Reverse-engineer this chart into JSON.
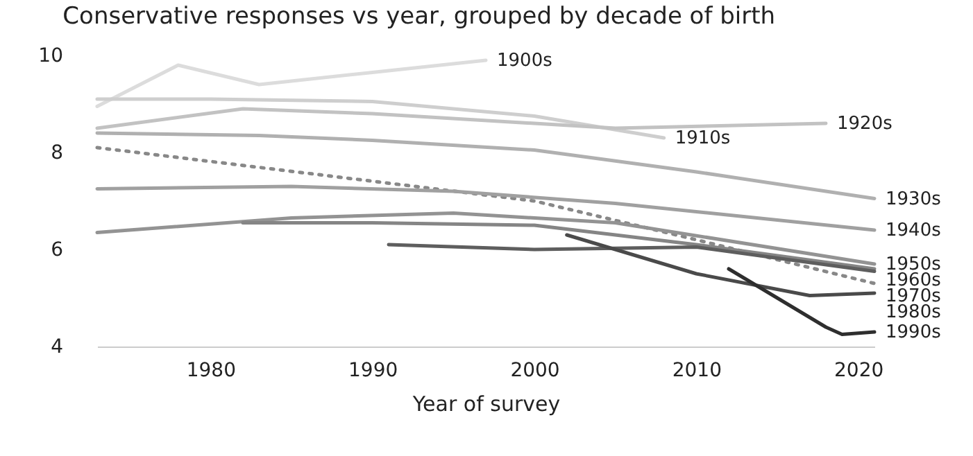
{
  "chart_data": {
    "type": "line",
    "title": "Conservative responses vs year, grouped by decade of birth",
    "xlabel": "Year of survey",
    "xlim": [
      1973,
      2021
    ],
    "xticks": [
      1980,
      1990,
      2000,
      2010,
      2020
    ],
    "ylim": [
      4,
      10
    ],
    "yticks": [
      4,
      6,
      8,
      10
    ],
    "grid": false,
    "legend": false,
    "marker": "none",
    "series": [
      {
        "name": "1900s",
        "color": "#dcdcdc",
        "x": [
          1973,
          1978,
          1983,
          1990,
          1997
        ],
        "values": [
          8.95,
          9.8,
          9.4,
          9.65,
          9.9
        ]
      },
      {
        "name": "1910s",
        "color": "#cecece",
        "x": [
          1973,
          1980,
          1990,
          2000,
          2008
        ],
        "values": [
          9.1,
          9.1,
          9.05,
          8.75,
          8.3
        ]
      },
      {
        "name": "1920s",
        "color": "#c2c2c2",
        "x": [
          1973,
          1982,
          1990,
          2000,
          2005,
          2018
        ],
        "values": [
          8.5,
          8.9,
          8.8,
          8.6,
          8.5,
          8.6
        ]
      },
      {
        "name": "1930s",
        "color": "#b0b0b0",
        "x": [
          1973,
          1983,
          1990,
          2000,
          2010,
          2021
        ],
        "values": [
          8.4,
          8.35,
          8.25,
          8.05,
          7.6,
          7.05
        ]
      },
      {
        "name": null,
        "color": "#888888",
        "line_style": "dotted",
        "x": [
          1973,
          2000,
          2010,
          2021
        ],
        "values": [
          8.1,
          7.0,
          6.2,
          5.3
        ]
      },
      {
        "name": "1940s",
        "color": "#a0a0a0",
        "x": [
          1973,
          1985,
          1995,
          2005,
          2021
        ],
        "values": [
          7.25,
          7.3,
          7.2,
          6.95,
          6.4
        ]
      },
      {
        "name": "1950s",
        "color": "#939393",
        "x": [
          1973,
          1985,
          1995,
          2005,
          2021
        ],
        "values": [
          6.35,
          6.65,
          6.75,
          6.55,
          5.7
        ]
      },
      {
        "name": "1960s",
        "color": "#858585",
        "x": [
          1982,
          1990,
          2000,
          2010,
          2021
        ],
        "values": [
          6.55,
          6.55,
          6.5,
          6.1,
          5.6
        ]
      },
      {
        "name": "1970s",
        "color": "#5e5e5e",
        "x": [
          1991,
          2000,
          2010,
          2021
        ],
        "values": [
          6.1,
          6.0,
          6.05,
          5.55
        ]
      },
      {
        "name": "1980s",
        "color": "#4a4a4a",
        "x": [
          2002,
          2010,
          2017,
          2021
        ],
        "values": [
          6.3,
          5.5,
          5.05,
          5.1
        ]
      },
      {
        "name": "1990s",
        "color": "#2e2e2e",
        "x": [
          2012,
          2018,
          2019,
          2021
        ],
        "values": [
          5.6,
          4.4,
          4.25,
          4.3
        ]
      }
    ]
  }
}
